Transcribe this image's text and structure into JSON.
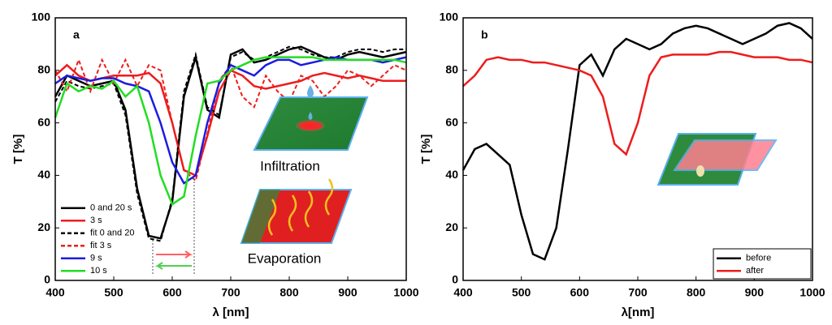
{
  "chart_data": [
    {
      "type": "line",
      "label": "a",
      "xlabel": "λ [nm]",
      "ylabel": "T [%]",
      "x": [
        400,
        420,
        440,
        460,
        480,
        500,
        520,
        540,
        560,
        580,
        600,
        620,
        640,
        660,
        680,
        700,
        720,
        740,
        760,
        780,
        800,
        820,
        840,
        860,
        880,
        900,
        920,
        940,
        960,
        980,
        1000
      ],
      "series": [
        {
          "name": "0 and 20 s",
          "color": "#000000",
          "dash": false,
          "values": [
            70,
            78,
            76,
            74,
            75,
            76,
            65,
            35,
            17,
            16,
            30,
            70,
            85,
            65,
            62,
            86,
            88,
            83,
            84,
            86,
            88,
            89,
            87,
            85,
            84,
            86,
            87,
            86,
            85,
            86,
            87
          ]
        },
        {
          "name": "3 s",
          "color": "#ee1c1c",
          "dash": false,
          "values": [
            78,
            82,
            78,
            76,
            77,
            78,
            78,
            78,
            79,
            75,
            60,
            42,
            40,
            55,
            72,
            80,
            78,
            74,
            73,
            74,
            75,
            76,
            78,
            79,
            78,
            77,
            78,
            77,
            76,
            76,
            76
          ]
        },
        {
          "name": "fit 0 and 20",
          "color": "#000000",
          "dash": true,
          "values": [
            68,
            76,
            74,
            73,
            74,
            75,
            63,
            33,
            16,
            15,
            31,
            72,
            86,
            66,
            63,
            85,
            87,
            84,
            85,
            87,
            89,
            88,
            86,
            85,
            85,
            87,
            88,
            88,
            87,
            88,
            88
          ]
        },
        {
          "name": "fit 3 s",
          "color": "#ee1c1c",
          "dash": true,
          "values": [
            80,
            72,
            84,
            72,
            84,
            75,
            84,
            74,
            82,
            80,
            60,
            42,
            38,
            56,
            76,
            82,
            70,
            66,
            78,
            72,
            68,
            78,
            76,
            70,
            74,
            80,
            78,
            74,
            78,
            82,
            80
          ]
        },
        {
          "name": "9 s",
          "color": "#1c1ce0",
          "dash": false,
          "values": [
            75,
            78,
            77,
            76,
            77,
            77,
            75,
            74,
            72,
            60,
            45,
            37,
            40,
            60,
            75,
            82,
            80,
            78,
            82,
            84,
            84,
            82,
            83,
            84,
            85,
            84,
            84,
            84,
            83,
            84,
            85
          ]
        },
        {
          "name": "10 s",
          "color": "#22dd22",
          "dash": false,
          "values": [
            62,
            75,
            72,
            74,
            73,
            76,
            70,
            74,
            60,
            40,
            29,
            32,
            55,
            75,
            76,
            80,
            82,
            84,
            85,
            85,
            85,
            85,
            85,
            84,
            84,
            84,
            84,
            84,
            84,
            84,
            83
          ]
        }
      ],
      "xlim": [
        400,
        1000
      ],
      "ylim": [
        0,
        100
      ],
      "xticks": [
        400,
        500,
        600,
        700,
        800,
        900,
        1000
      ],
      "yticks": [
        0,
        20,
        40,
        60,
        80,
        100
      ],
      "legend": "lower left",
      "annotations": [
        "Infiltration",
        "Evaporation"
      ]
    },
    {
      "type": "line",
      "label": "b",
      "xlabel": "λ[nm]",
      "ylabel": "T [%]",
      "x": [
        400,
        420,
        440,
        460,
        480,
        500,
        520,
        540,
        560,
        580,
        600,
        620,
        640,
        660,
        680,
        700,
        720,
        740,
        760,
        780,
        800,
        820,
        840,
        860,
        880,
        900,
        920,
        940,
        960,
        980,
        1000
      ],
      "series": [
        {
          "name": "before",
          "color": "#000000",
          "dash": false,
          "values": [
            42,
            50,
            52,
            48,
            44,
            25,
            10,
            8,
            20,
            50,
            82,
            86,
            78,
            88,
            92,
            90,
            88,
            90,
            94,
            96,
            97,
            96,
            94,
            92,
            90,
            92,
            94,
            97,
            98,
            96,
            92
          ]
        },
        {
          "name": "after",
          "color": "#ee1c1c",
          "dash": false,
          "values": [
            74,
            78,
            84,
            85,
            84,
            84,
            83,
            83,
            82,
            81,
            80,
            78,
            70,
            52,
            48,
            60,
            78,
            85,
            86,
            86,
            86,
            86,
            87,
            87,
            86,
            85,
            85,
            85,
            84,
            84,
            83
          ]
        }
      ],
      "xlim": [
        400,
        1000
      ],
      "ylim": [
        0,
        100
      ],
      "xticks": [
        400,
        500,
        600,
        700,
        800,
        900,
        1000
      ],
      "yticks": [
        0,
        20,
        40,
        60,
        80,
        100
      ],
      "legend": "lower right"
    }
  ]
}
